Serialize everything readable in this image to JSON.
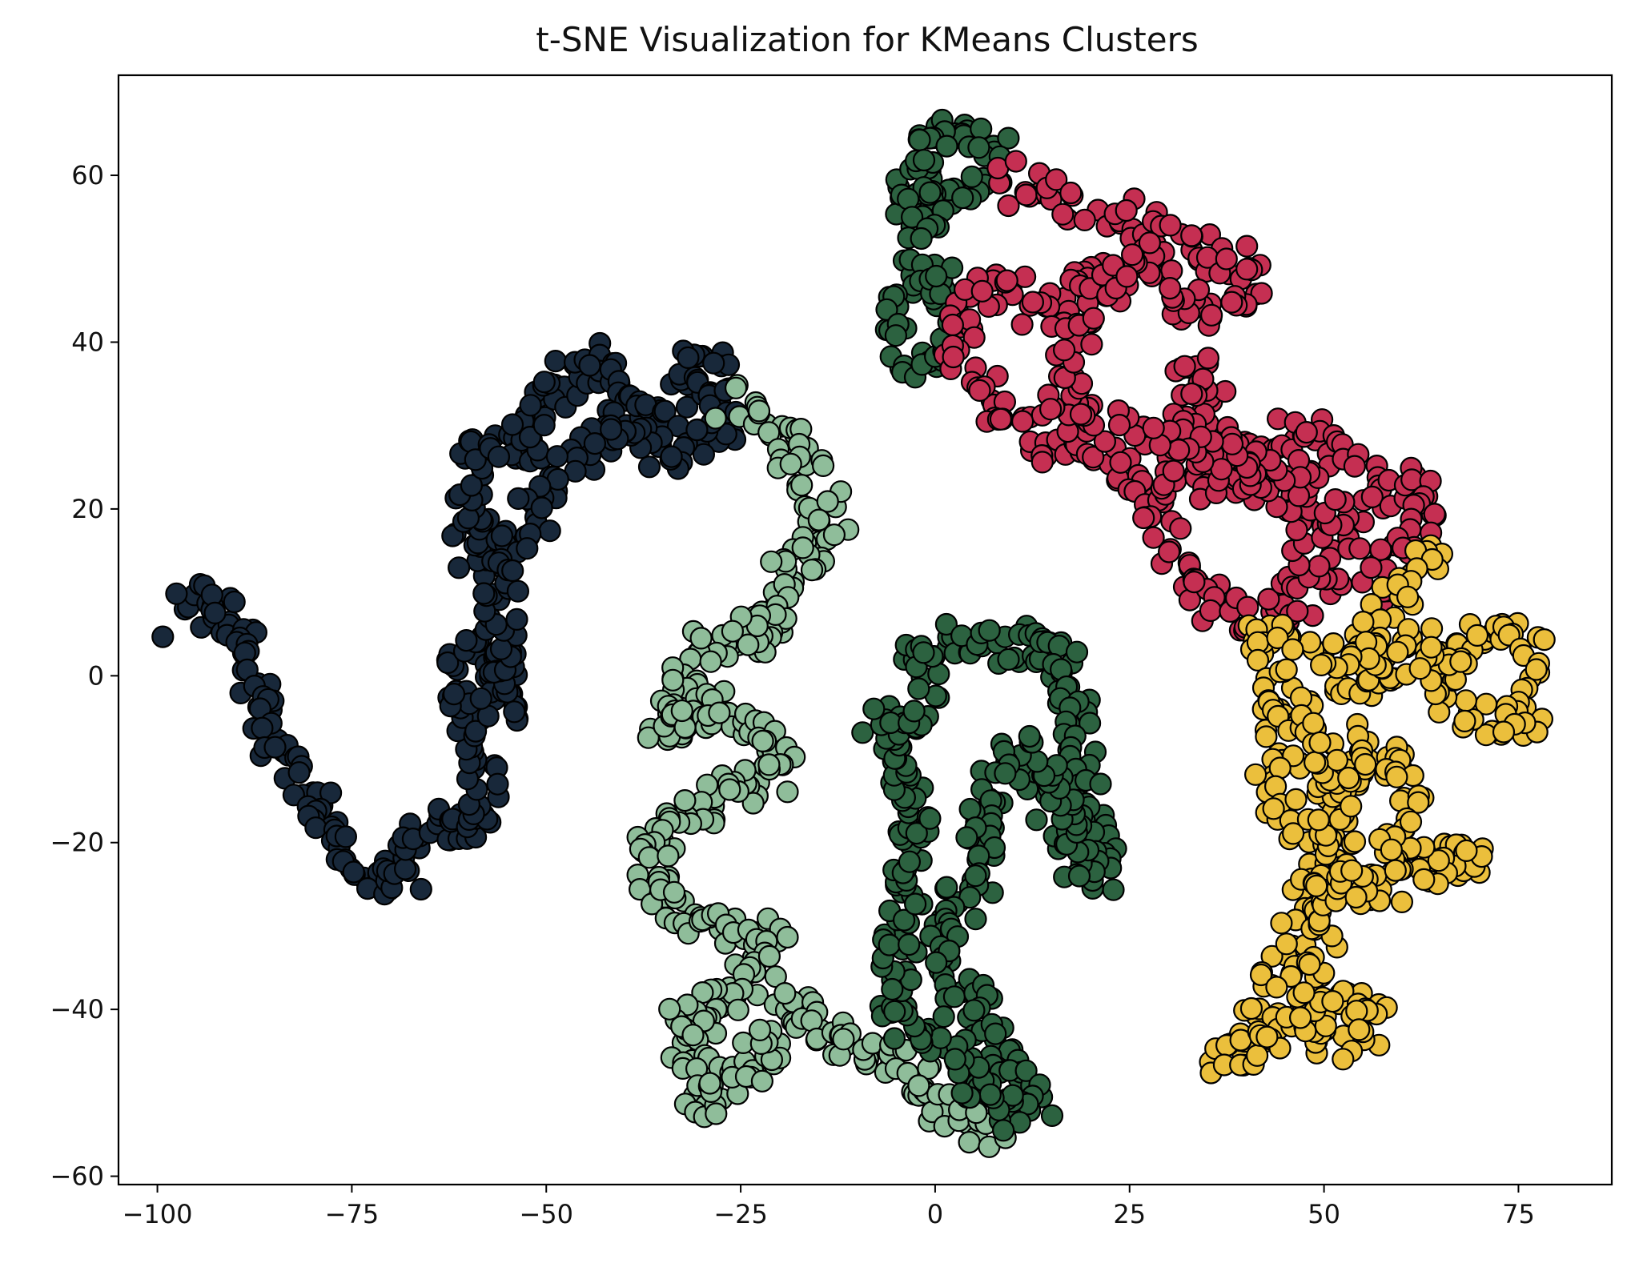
{
  "chart_data": {
    "type": "scatter",
    "title": "t-SNE Visualization for KMeans Clusters",
    "xlabel": "",
    "ylabel": "",
    "xlim": [
      -105,
      87
    ],
    "ylim": [
      -61,
      72
    ],
    "grid": false,
    "legend": "none",
    "xticks": [
      -100,
      -75,
      -50,
      -25,
      0,
      25,
      50,
      75
    ],
    "yticks": [
      -60,
      -40,
      -20,
      0,
      20,
      40,
      60
    ],
    "xtick_labels": [
      "−100",
      "−75",
      "−50",
      "−25",
      "0",
      "25",
      "50",
      "75"
    ],
    "ytick_labels": [
      "−60",
      "−40",
      "−20",
      "0",
      "20",
      "40",
      "60"
    ],
    "series": [
      {
        "color": "#18283a",
        "path": [
          [
            -97,
            7
          ],
          [
            -95,
            9
          ],
          [
            -91,
            8
          ],
          [
            -89,
            3
          ],
          [
            -87,
            -3
          ],
          [
            -85,
            -9
          ],
          [
            -82,
            -12
          ],
          [
            -79,
            -17
          ],
          [
            -77,
            -20
          ],
          [
            -75,
            -21
          ],
          [
            -72,
            -23
          ],
          [
            -69,
            -25
          ],
          [
            -67,
            -20
          ],
          [
            -65,
            -17
          ],
          [
            -62,
            -18
          ],
          [
            -59,
            -17
          ],
          [
            -58,
            -12
          ],
          [
            -60,
            -6
          ],
          [
            -62,
            -2
          ],
          [
            -61,
            3
          ],
          [
            -58,
            4
          ],
          [
            -56,
            0
          ],
          [
            -56,
            -4
          ],
          [
            -56,
            6
          ],
          [
            -57,
            12
          ],
          [
            -59,
            15
          ],
          [
            -61,
            21
          ],
          [
            -59,
            26
          ],
          [
            -56,
            28
          ],
          [
            -54,
            25
          ],
          [
            -52,
            31
          ],
          [
            -50,
            33
          ],
          [
            -47,
            36
          ],
          [
            -44,
            38
          ],
          [
            -40,
            33
          ],
          [
            -36,
            30
          ],
          [
            -33,
            33
          ],
          [
            -31,
            38
          ],
          [
            -28,
            36
          ],
          [
            -26,
            31
          ],
          [
            -30,
            28
          ],
          [
            -34,
            27
          ],
          [
            -40,
            28
          ],
          [
            -45,
            27
          ],
          [
            -50,
            22
          ],
          [
            -54,
            17
          ],
          [
            -55,
            10
          ]
        ],
        "jitter": 2.4,
        "density": 4
      },
      {
        "color": "#8fbd9a",
        "path": [
          [
            -26,
            33
          ],
          [
            -23,
            32
          ],
          [
            -18,
            27
          ],
          [
            -15,
            22
          ],
          [
            -13,
            18
          ],
          [
            -17,
            14
          ],
          [
            -21,
            10
          ],
          [
            -20,
            5
          ],
          [
            -25,
            5
          ],
          [
            -30,
            4
          ],
          [
            -33,
            -2
          ],
          [
            -35,
            -7
          ],
          [
            -30,
            -4
          ],
          [
            -26,
            -5
          ],
          [
            -22,
            -8
          ],
          [
            -20,
            -12
          ],
          [
            -25,
            -13
          ],
          [
            -31,
            -16
          ],
          [
            -35,
            -18
          ],
          [
            -38,
            -21
          ],
          [
            -34,
            -27
          ],
          [
            -30,
            -29
          ],
          [
            -25,
            -30
          ],
          [
            -20,
            -33
          ],
          [
            -24,
            -37
          ],
          [
            -28,
            -40
          ],
          [
            -33,
            -42
          ],
          [
            -31,
            -47
          ],
          [
            -29,
            -52
          ],
          [
            -25,
            -49
          ],
          [
            -22,
            -44
          ],
          [
            -18,
            -40
          ],
          [
            -14,
            -42
          ],
          [
            -10,
            -45
          ],
          [
            -6,
            -46
          ],
          [
            -3,
            -49
          ],
          [
            1,
            -52
          ],
          [
            5,
            -54
          ],
          [
            8,
            -55
          ]
        ],
        "jitter": 2.4,
        "density": 4
      },
      {
        "color": "#2c6240",
        "path": [
          [
            -4,
            1
          ],
          [
            0,
            3
          ],
          [
            4,
            5
          ],
          [
            8,
            4
          ],
          [
            12,
            3
          ],
          [
            15,
            5
          ],
          [
            17,
            2
          ],
          [
            18,
            -3
          ],
          [
            19,
            -8
          ],
          [
            20,
            -14
          ],
          [
            21,
            -20
          ],
          [
            22,
            -24
          ],
          [
            18,
            -23
          ],
          [
            16,
            -18
          ],
          [
            14,
            -12
          ],
          [
            11,
            -8
          ],
          [
            8,
            -12
          ],
          [
            6,
            -18
          ],
          [
            5,
            -24
          ],
          [
            3,
            -28
          ],
          [
            1,
            -33
          ],
          [
            3,
            -37
          ],
          [
            6,
            -40
          ],
          [
            9,
            -45
          ],
          [
            11,
            -49
          ],
          [
            13,
            -52
          ],
          [
            9,
            -53
          ],
          [
            5,
            -49
          ],
          [
            1,
            -44
          ],
          [
            -2,
            -42
          ],
          [
            -6,
            -40
          ],
          [
            -3,
            -25
          ],
          [
            -2,
            -18
          ],
          [
            -5,
            -10
          ],
          [
            -8,
            -6
          ],
          [
            -3,
            -6
          ],
          [
            0,
            -3
          ]
        ],
        "jitter": 2.4,
        "density": 4
      },
      {
        "color": "#2c6240",
        "path": [
          [
            1,
            64
          ],
          [
            4,
            66
          ],
          [
            8,
            63
          ],
          [
            6,
            59
          ],
          [
            1,
            56
          ],
          [
            -4,
            56
          ],
          [
            -2,
            61
          ],
          [
            0,
            65
          ],
          [
            -2,
            50
          ],
          [
            -4,
            46
          ],
          [
            -5,
            42
          ],
          [
            -4,
            38
          ],
          [
            -1,
            36
          ],
          [
            1,
            42
          ],
          [
            2,
            47
          ],
          [
            -1,
            47
          ]
        ],
        "jitter": 2.2,
        "density": 3
      },
      {
        "color": "#c52f52",
        "path": [
          [
            9,
            58
          ],
          [
            12,
            60
          ],
          [
            15,
            59
          ],
          [
            18,
            57
          ],
          [
            22,
            56
          ],
          [
            26,
            54
          ],
          [
            30,
            52
          ],
          [
            35,
            51
          ],
          [
            39,
            49
          ],
          [
            42,
            47
          ],
          [
            39,
            44
          ],
          [
            35,
            43
          ],
          [
            30,
            47
          ],
          [
            26,
            51
          ],
          [
            22,
            47
          ],
          [
            17,
            47
          ],
          [
            14,
            43
          ],
          [
            9,
            47
          ],
          [
            5,
            46
          ],
          [
            3,
            42
          ],
          [
            4,
            37
          ],
          [
            7,
            33
          ],
          [
            11,
            30
          ],
          [
            15,
            27
          ],
          [
            19,
            28
          ],
          [
            22,
            26
          ],
          [
            25,
            25
          ],
          [
            28,
            21
          ],
          [
            30,
            16
          ],
          [
            33,
            12
          ],
          [
            36,
            9
          ],
          [
            40,
            6
          ],
          [
            44,
            8
          ],
          [
            48,
            10
          ],
          [
            51,
            11
          ],
          [
            50,
            14
          ],
          [
            47,
            18
          ],
          [
            44,
            21
          ],
          [
            40,
            24
          ],
          [
            37,
            28
          ],
          [
            35,
            34
          ],
          [
            33,
            38
          ],
          [
            31,
            24
          ],
          [
            36,
            23
          ],
          [
            42,
            27
          ],
          [
            46,
            30
          ],
          [
            50,
            28
          ],
          [
            53,
            25
          ],
          [
            56,
            22
          ],
          [
            59,
            21
          ],
          [
            62,
            24
          ],
          [
            64,
            20
          ],
          [
            61,
            16
          ],
          [
            59,
            13
          ],
          [
            57,
            10
          ],
          [
            55,
            14
          ],
          [
            53,
            17
          ],
          [
            50,
            21
          ],
          [
            47,
            24
          ],
          [
            16,
            32
          ],
          [
            18,
            40
          ],
          [
            20,
            45
          ],
          [
            24,
            48
          ]
        ],
        "jitter": 2.3,
        "density": 3
      },
      {
        "color": "#ebbf3c",
        "path": [
          [
            66,
            15
          ],
          [
            62,
            13
          ],
          [
            60,
            10
          ],
          [
            58,
            7
          ],
          [
            56,
            5
          ],
          [
            54,
            2
          ],
          [
            53,
            -1
          ],
          [
            56,
            -1
          ],
          [
            59,
            2
          ],
          [
            61,
            4
          ],
          [
            64,
            2
          ],
          [
            68,
            4
          ],
          [
            72,
            6
          ],
          [
            76,
            3
          ],
          [
            77,
            -2
          ],
          [
            75,
            -7
          ],
          [
            71,
            -6
          ],
          [
            68,
            -4
          ],
          [
            66,
            -1
          ],
          [
            68,
            1
          ],
          [
            41,
            4
          ],
          [
            43,
            6
          ],
          [
            44,
            2
          ],
          [
            44,
            -2
          ],
          [
            42,
            -4
          ],
          [
            46,
            -7
          ],
          [
            48,
            -4
          ],
          [
            46,
            -10
          ],
          [
            43,
            -14
          ],
          [
            46,
            -18
          ],
          [
            50,
            -20
          ],
          [
            48,
            -24
          ],
          [
            47,
            -29
          ],
          [
            45,
            -33
          ],
          [
            44,
            -38
          ],
          [
            42,
            -41
          ],
          [
            39,
            -44
          ],
          [
            36,
            -46
          ],
          [
            40,
            -45
          ],
          [
            44,
            -42
          ],
          [
            48,
            -40
          ],
          [
            52,
            -38
          ],
          [
            55,
            -39
          ],
          [
            57,
            -41
          ],
          [
            52,
            -44
          ],
          [
            48,
            -44
          ],
          [
            53,
            -8
          ],
          [
            56,
            -12
          ],
          [
            59,
            -9
          ],
          [
            61,
            -14
          ],
          [
            60,
            -19
          ],
          [
            64,
            -22
          ],
          [
            68,
            -23
          ],
          [
            70,
            -21
          ],
          [
            66,
            -24
          ],
          [
            61,
            -22
          ],
          [
            57,
            -21
          ],
          [
            58,
            -25
          ],
          [
            53,
            -26
          ],
          [
            50,
            -15
          ],
          [
            53,
            -14
          ],
          [
            49,
            -9
          ]
        ],
        "jitter": 2.3,
        "density": 3
      }
    ]
  }
}
